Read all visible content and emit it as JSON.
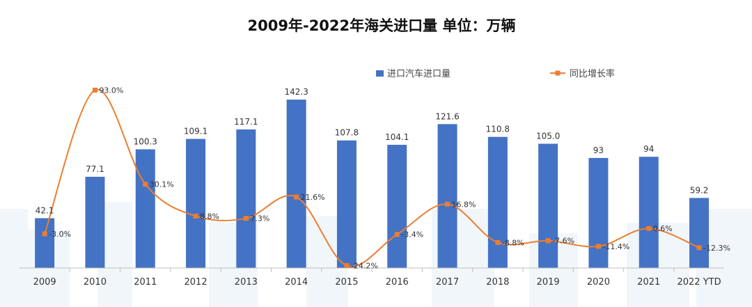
{
  "chart_data": {
    "type": "bar",
    "title": "2009年-2022年海关进口量  单位：万辆",
    "legend_position": "top",
    "categories": [
      "2009",
      "2010",
      "2011",
      "2012",
      "2013",
      "2014",
      "2015",
      "2016",
      "2017",
      "2018",
      "2019",
      "2020",
      "2021",
      "2022 YTD"
    ],
    "series": [
      {
        "name": "进口汽车进口量",
        "type": "bar",
        "color": "#4472C4",
        "values": [
          42.1,
          77.1,
          100.3,
          109.1,
          117.1,
          142.3,
          107.8,
          104.1,
          121.6,
          110.8,
          105.0,
          93,
          94,
          59.2
        ],
        "labels": [
          "42.1",
          "77.1",
          "100.3",
          "109.1",
          "117.1",
          "142.3",
          "107.8",
          "104.1",
          "121.6",
          "110.8",
          "105.0",
          "93",
          "94",
          "59.2"
        ]
      },
      {
        "name": "同比增长率",
        "type": "line",
        "smooth": true,
        "color": "#ED7D31",
        "values": [
          -3.0,
          93.0,
          30.1,
          8.8,
          7.3,
          21.6,
          -24.2,
          -3.4,
          16.8,
          -8.8,
          -7.6,
          -11.4,
          0.6,
          -12.3
        ],
        "labels": [
          "-3.0%",
          "93.0%",
          "30.1%",
          "8.8%",
          "7.3%",
          "21.6%",
          "-24.2%",
          "-3.4%",
          "16.8%",
          "-8.8%",
          "-7.6%",
          "-11.4%",
          "0.6%",
          "-12.3%"
        ]
      }
    ],
    "ylim": [
      0,
      150
    ],
    "y2lim": [
      -30,
      100
    ],
    "grid": false
  }
}
